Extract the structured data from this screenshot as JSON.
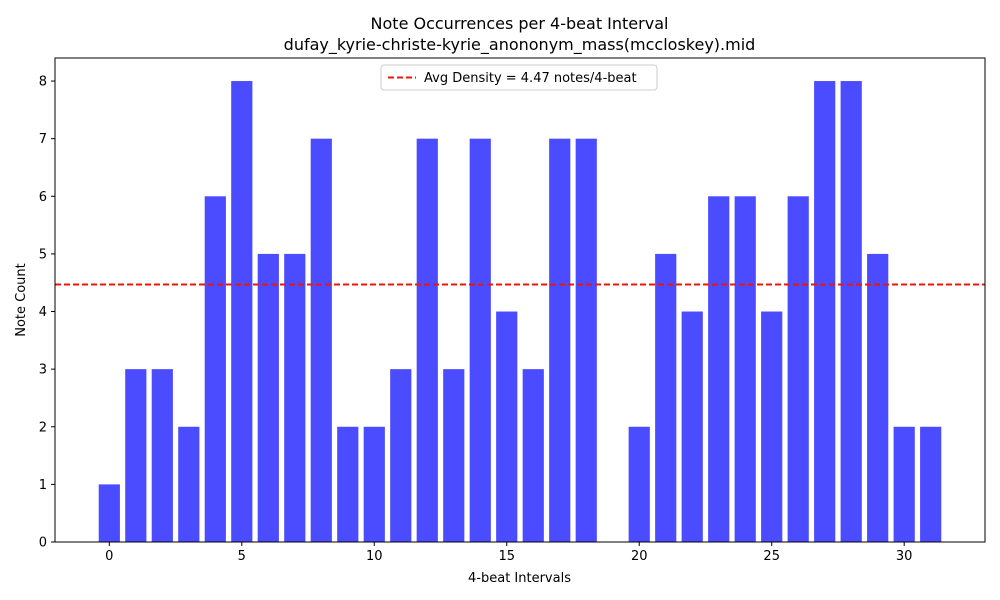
{
  "chart_data": {
    "type": "bar",
    "title": "Note Occurrences per 4-beat Interval",
    "subtitle": "dufay_kyrie-christe-kyrie_anononym_mass(mccloskey).mid",
    "xlabel": "4-beat Intervals",
    "ylabel": "Note Count",
    "x": [
      0,
      1,
      2,
      3,
      4,
      5,
      6,
      7,
      8,
      9,
      10,
      11,
      12,
      13,
      14,
      15,
      16,
      17,
      18,
      19,
      20,
      21,
      22,
      23,
      24,
      25,
      26,
      27,
      28,
      29,
      30,
      31
    ],
    "values": [
      1,
      3,
      3,
      2,
      6,
      8,
      5,
      5,
      7,
      2,
      2,
      3,
      7,
      3,
      7,
      4,
      3,
      7,
      7,
      0,
      2,
      5,
      4,
      6,
      6,
      4,
      6,
      8,
      8,
      5,
      2,
      2
    ],
    "xlim": [
      -2.05,
      33.05
    ],
    "ylim": [
      0,
      8.4
    ],
    "x_ticks": [
      0,
      5,
      10,
      15,
      20,
      25,
      30
    ],
    "y_ticks": [
      0,
      1,
      2,
      3,
      4,
      5,
      6,
      7,
      8
    ],
    "bar_color": "#4b4bff",
    "average": {
      "value": 4.47,
      "label": "Avg Density = 4.47 notes/4-beat",
      "color": "#e8170b",
      "style": "dashed"
    },
    "legend_position": "top-center",
    "grid": false
  }
}
